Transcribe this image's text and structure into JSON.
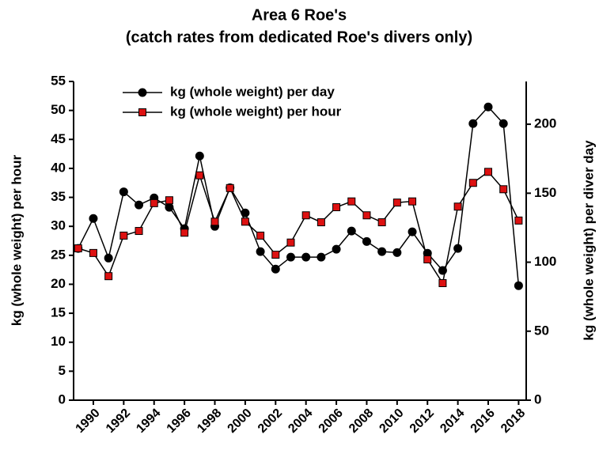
{
  "chart_data": {
    "type": "line",
    "title": "Area 6 Roe's",
    "subtitle": "(catch rates from dedicated Roe's divers only)",
    "y_label": "kg (whole weight) per hour",
    "y2_label": "kg (whole weight) per diver day",
    "x": [
      1989,
      1990,
      1991,
      1992,
      1993,
      1994,
      1995,
      1996,
      1997,
      1998,
      1999,
      2000,
      2001,
      2002,
      2003,
      2004,
      2005,
      2006,
      2007,
      2008,
      2009,
      2010,
      2011,
      2012,
      2013,
      2014,
      2015,
      2016,
      2017,
      2018
    ],
    "xlim": [
      1988.7,
      2018.5
    ],
    "xticks": [
      1990,
      1992,
      1994,
      1996,
      1998,
      2000,
      2002,
      2004,
      2006,
      2008,
      2010,
      2012,
      2014,
      2016,
      2018
    ],
    "ylim": [
      0,
      55
    ],
    "yticks": [
      0,
      5,
      10,
      15,
      20,
      25,
      30,
      35,
      40,
      45,
      50,
      55
    ],
    "y2lim": [
      0,
      231
    ],
    "y2ticks": [
      0,
      50,
      100,
      150,
      200
    ],
    "legend": "upper left",
    "line_color": "#000000",
    "series": [
      {
        "name": "kg (whole weight) per day",
        "color": "#000000",
        "marker": "circle",
        "axis": "y2",
        "values": [
          110,
          131.7,
          103,
          151,
          141.5,
          146.6,
          139.8,
          124.3,
          177,
          126,
          154,
          135.7,
          107.7,
          95,
          103.7,
          103.7,
          103.7,
          109.4,
          122.6,
          115,
          107.7,
          107,
          122,
          106.5,
          94,
          110,
          200.5,
          212.5,
          200.5,
          83
        ]
      },
      {
        "name": "kg (whole weight) per hour",
        "color": "#dd1111",
        "marker": "square",
        "values": [
          26.2,
          25.4,
          21.4,
          28.4,
          29.2,
          34.0,
          34.5,
          28.9,
          38.8,
          30.8,
          36.6,
          30.8,
          28.4,
          25.1,
          27.2,
          31.9,
          30.7,
          33.3,
          34.3,
          31.9,
          30.7,
          34.1,
          34.3,
          24.3,
          20.2,
          33.4,
          37.5,
          39.4,
          36.4,
          31.0
        ]
      }
    ]
  }
}
